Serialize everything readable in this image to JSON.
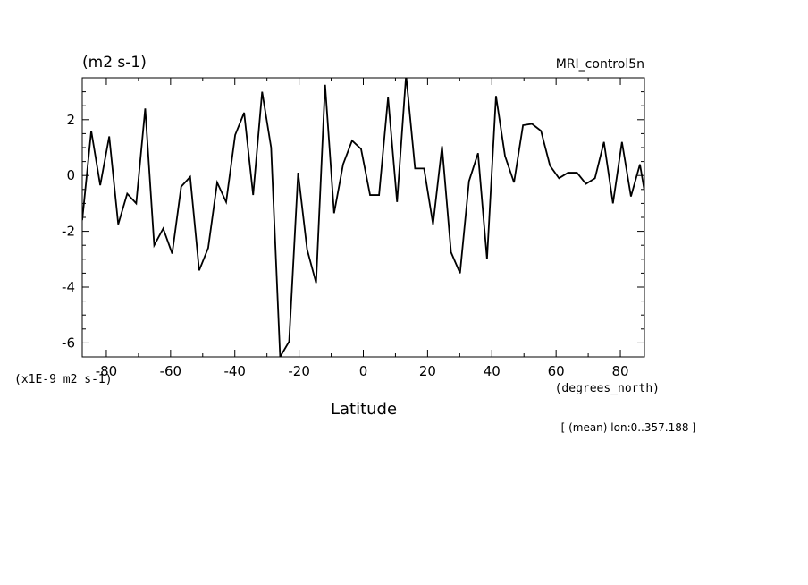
{
  "chart_data": {
    "type": "line",
    "title": "",
    "xlabel": "Latitude",
    "xunit_label": "(degrees_north)",
    "ylabel": "(m2 s-1)",
    "yscale_label": "(x1E-9 m2 s-1)",
    "dataset_label": "MRI_control5n",
    "annotation": "[ (mean) lon:0..357.188 ]",
    "xlim": [
      -87.5,
      87.5
    ],
    "ylim": [
      -6.5,
      3.5
    ],
    "x_ticks": [
      -80,
      -60,
      -40,
      -20,
      0,
      20,
      40,
      60,
      80
    ],
    "x_tick_labels": [
      "-80",
      "-60",
      "-40",
      "-20",
      "0",
      "20",
      "40",
      "60",
      "80"
    ],
    "y_ticks": [
      2,
      0,
      -2,
      -4,
      -6
    ],
    "y_tick_labels": [
      "2",
      "0",
      "-2",
      "-4",
      "-6"
    ],
    "grid": false,
    "legend": "none",
    "colors": {
      "line": "#000000",
      "axis": "#000000",
      "background": "#ffffff"
    },
    "x": [
      -87.5,
      -84.7,
      -81.9,
      -79.1,
      -76.3,
      -73.5,
      -70.7,
      -67.9,
      -65.1,
      -62.3,
      -59.5,
      -56.7,
      -53.9,
      -51.1,
      -48.3,
      -45.5,
      -42.7,
      -39.9,
      -37.1,
      -34.3,
      -31.5,
      -28.7,
      -25.9,
      -23.1,
      -20.3,
      -17.5,
      -14.7,
      -11.9,
      -9.1,
      -6.3,
      -3.5,
      -0.7,
      2.1,
      4.9,
      7.7,
      10.5,
      13.3,
      16.1,
      18.9,
      21.7,
      24.5,
      27.3,
      30.1,
      32.9,
      35.7,
      38.5,
      41.3,
      44.1,
      46.9,
      49.7,
      52.5,
      55.3,
      58.1,
      60.9,
      63.7,
      66.5,
      69.3,
      72.1,
      74.9,
      77.7,
      80.5,
      83.3,
      86.1,
      87.5
    ],
    "y": [
      -1.6,
      1.6,
      -0.35,
      1.4,
      -1.75,
      -0.65,
      -1.0,
      2.4,
      -2.5,
      -1.9,
      -2.8,
      -0.4,
      -0.05,
      -3.4,
      -2.6,
      -0.25,
      -0.95,
      1.45,
      2.25,
      -0.7,
      3.0,
      1.0,
      -6.5,
      -5.95,
      0.1,
      -2.65,
      -3.85,
      3.25,
      -1.35,
      0.4,
      1.25,
      0.95,
      -0.7,
      -0.7,
      2.8,
      -0.95,
      3.6,
      0.25,
      0.25,
      -1.75,
      1.05,
      -2.75,
      -3.5,
      -0.2,
      0.8,
      -3.0,
      2.85,
      0.7,
      -0.25,
      1.8,
      1.85,
      1.6,
      0.35,
      -0.1,
      0.1,
      0.1,
      -0.3,
      -0.1,
      1.2,
      -1.0,
      1.2,
      -0.75,
      0.4,
      -0.55
    ]
  }
}
